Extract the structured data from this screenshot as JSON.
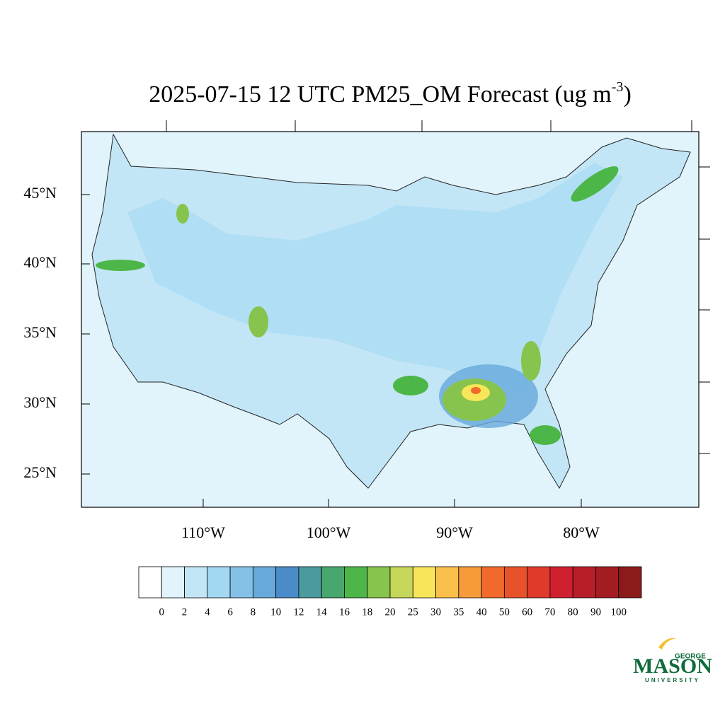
{
  "title": "2025-07-15 12 UTC PM25_OM Forecast (ug m",
  "title_superscript": "-3",
  "title_end": ")",
  "lat_labels": [
    "45°N",
    "40°N",
    "35°N",
    "30°N",
    "25°N"
  ],
  "lon_labels": [
    "110°W",
    "100°W",
    "90°W",
    "80°W"
  ],
  "colorbar": {
    "levels": [
      0,
      2,
      4,
      6,
      8,
      10,
      12,
      14,
      16,
      18,
      20,
      25,
      30,
      35,
      40,
      50,
      60,
      70,
      80,
      90,
      100
    ],
    "colors": [
      "#ffffff",
      "#e1f3fb",
      "#c3e6f7",
      "#a3d8f2",
      "#84c1e7",
      "#68a9dc",
      "#4a8bc9",
      "#4a9a9e",
      "#47a76f",
      "#4cb748",
      "#87c44d",
      "#c5d65a",
      "#f7e65a",
      "#f8c04a",
      "#f69a3a",
      "#f26a2b",
      "#e8522b",
      "#df3a2a",
      "#cf2030",
      "#b81e2a",
      "#a21c22",
      "#8b1a1a"
    ]
  },
  "logo": {
    "line1": "GEORGE",
    "line2": "MASON",
    "line3": "UNIVERSITY"
  }
}
